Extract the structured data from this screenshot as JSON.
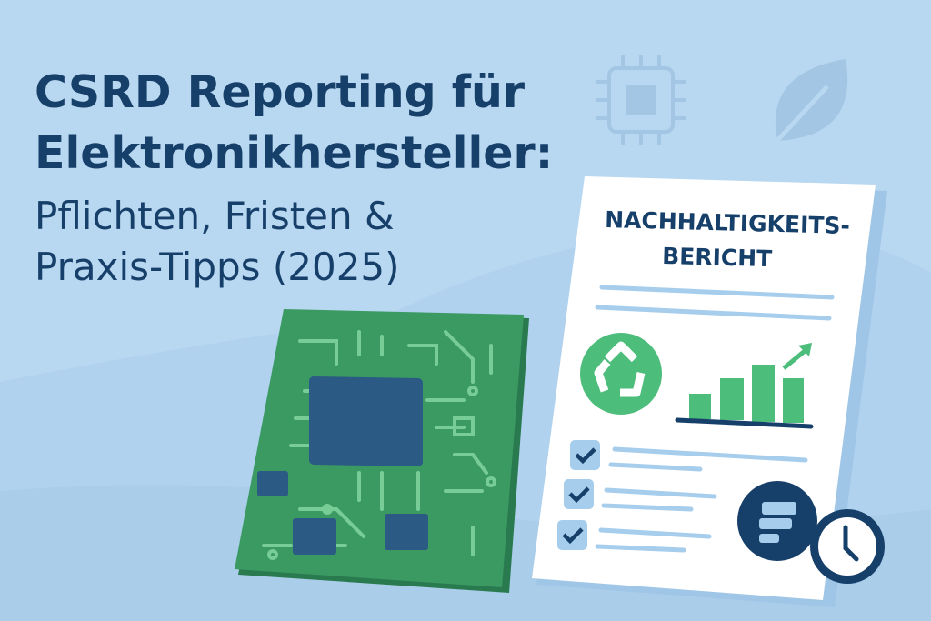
{
  "headline": {
    "line1": "CSRD Reporting für",
    "line2": "Elektronikhersteller:",
    "line3": "Pflichten, Fristen &",
    "line4": "Praxis-Tipps (2025)"
  },
  "report": {
    "title_line1": "NACHHALTIGKEITS-",
    "title_line2": "BERICHT",
    "checklist_items": 3,
    "icons": [
      "recycle-icon",
      "bar-chart-up-icon",
      "checkbox-check-icon",
      "document-stack-icon",
      "clock-icon"
    ]
  },
  "decor_icons": [
    "microchip-icon",
    "leaf-icon",
    "circuit-board"
  ],
  "colors": {
    "background": "#b8d7f0",
    "navy": "#163f6a",
    "green": "#4dbd7c",
    "pcb_green": "#3a9a62",
    "light_blue": "#a6cdec"
  }
}
